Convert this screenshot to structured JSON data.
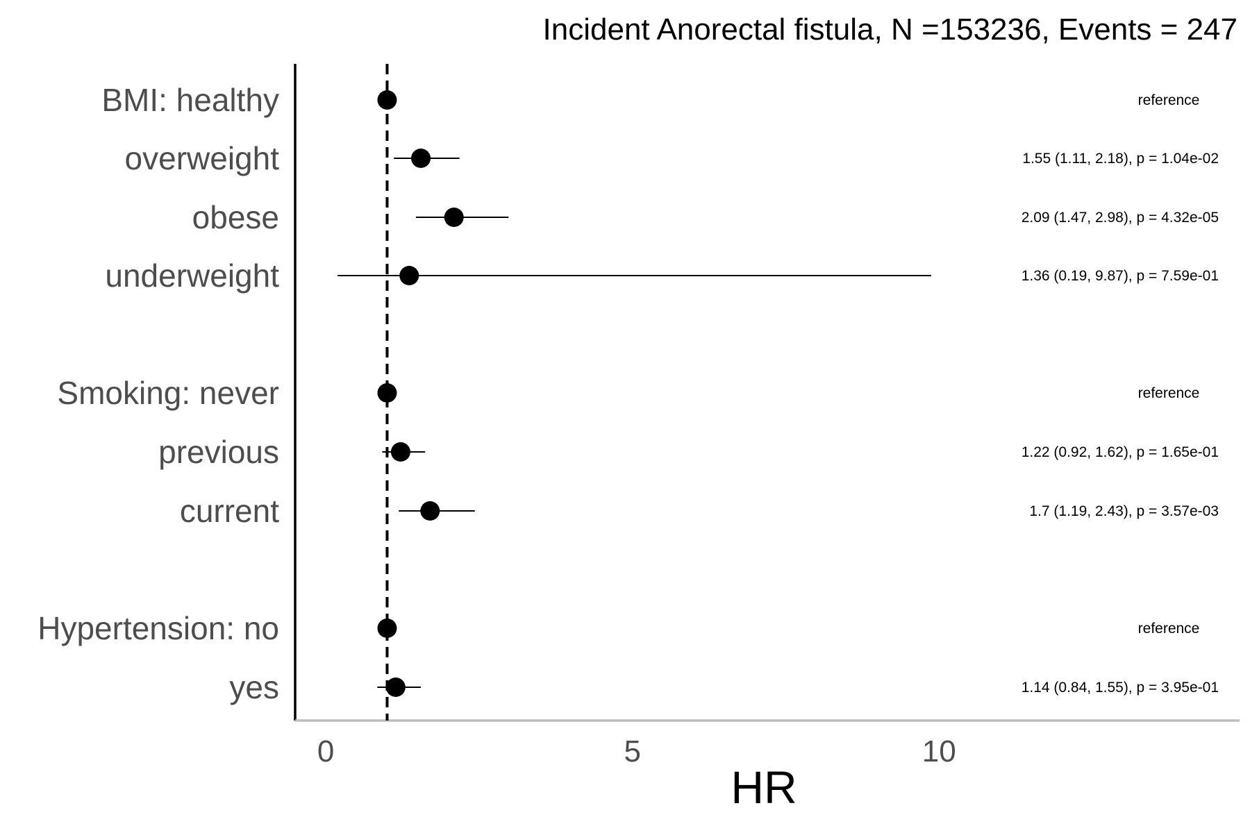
{
  "chart_data": {
    "type": "forest",
    "title": "Incident Anorectal fistula, N =153236, Events = 247",
    "xlabel": "HR",
    "xlim": [
      -0.5,
      14.9
    ],
    "xticks": [
      0,
      5,
      10
    ],
    "reference_line": 1,
    "grid": false,
    "rows": [
      {
        "label": "BMI: healthy",
        "hr": 1,
        "lower": null,
        "upper": null,
        "annotation": "reference"
      },
      {
        "label": "overweight",
        "hr": 1.55,
        "lower": 1.11,
        "upper": 2.18,
        "annotation": "1.55 (1.11, 2.18), p = 1.04e-02"
      },
      {
        "label": "obese",
        "hr": 2.09,
        "lower": 1.47,
        "upper": 2.98,
        "annotation": "2.09 (1.47, 2.98), p = 4.32e-05"
      },
      {
        "label": "underweight",
        "hr": 1.36,
        "lower": 0.19,
        "upper": 9.87,
        "annotation": "1.36 (0.19, 9.87), p = 7.59e-01"
      },
      {
        "label": "Smoking: never",
        "hr": 1,
        "lower": null,
        "upper": null,
        "annotation": "reference"
      },
      {
        "label": "previous",
        "hr": 1.22,
        "lower": 0.92,
        "upper": 1.62,
        "annotation": "1.22 (0.92, 1.62), p = 1.65e-01"
      },
      {
        "label": "current",
        "hr": 1.7,
        "lower": 1.19,
        "upper": 2.43,
        "annotation": "1.7 (1.19, 2.43), p = 3.57e-03"
      },
      {
        "label": "Hypertension: no",
        "hr": 1,
        "lower": null,
        "upper": null,
        "annotation": "reference"
      },
      {
        "label": "yes",
        "hr": 1.14,
        "lower": 0.84,
        "upper": 1.55,
        "annotation": "1.14 (0.84, 1.55), p = 3.95e-01"
      }
    ],
    "colors": {
      "point": "#000000",
      "ci_line": "#000000",
      "reference_line": "#000000",
      "row_label": "#4d4d4d",
      "x_axis_line": "#bebebe"
    }
  }
}
